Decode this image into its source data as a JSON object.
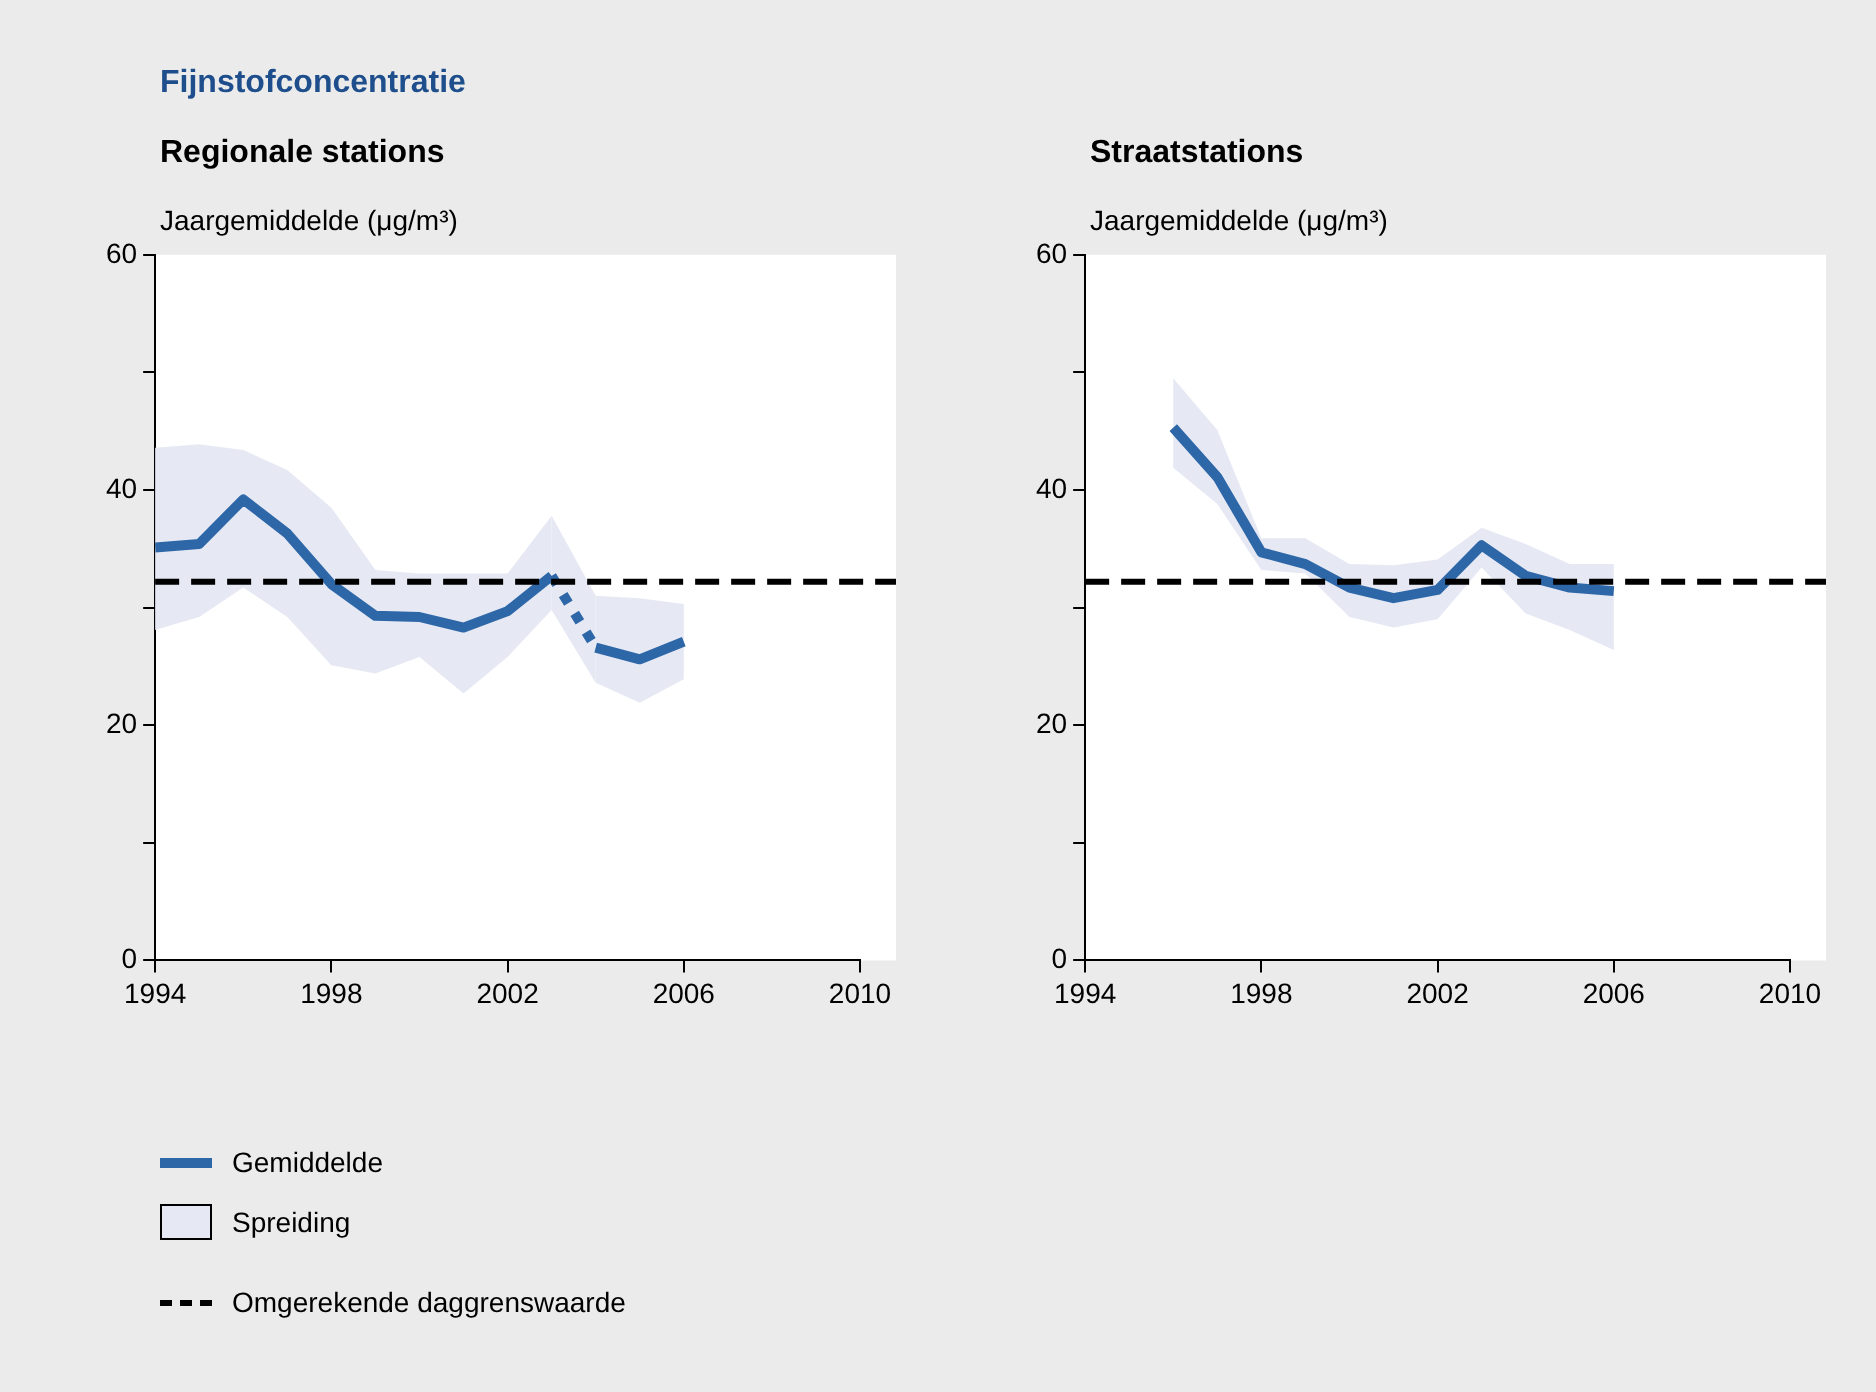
{
  "chart_data": [
    {
      "type": "line",
      "title": "Fijnstofconcentratie",
      "subtitle": "Regionale stations",
      "ylabel": "Jaargemiddelde (μg/m³)",
      "xlim": [
        1994,
        2010
      ],
      "xticks": [
        1994,
        1998,
        2002,
        2006,
        2010
      ],
      "ylim": [
        0,
        60
      ],
      "yticks": [
        0,
        {
          "value": 10,
          "label": null
        },
        20,
        {
          "value": 30,
          "label": null
        },
        40,
        {
          "value": 50,
          "label": null
        },
        60
      ],
      "grid": false,
      "legend": "bottom",
      "marker": "none",
      "annotations": [
        "Spreiding"
      ],
      "ref_lines": [
        {
          "axis": "y",
          "value": 32.2,
          "label": "Omgerekende daggrenswaarde",
          "color": "#000000",
          "line_style": "dashed"
        }
      ],
      "series": [
        {
          "name": "Gemiddelde",
          "color": "#2e67a8",
          "line_style": "solid",
          "x": [
            1994,
            1995,
            1996,
            1997,
            1998,
            1999,
            2000,
            2001,
            2002,
            2003
          ],
          "values": [
            35.1,
            35.4,
            39.2,
            36.3,
            32,
            29.3,
            29.2,
            28.3,
            29.7,
            32.7
          ],
          "lower": [
            28.1,
            29.2,
            31.7,
            29.2,
            25.1,
            24.4,
            25.8,
            22.7,
            25.8,
            29.8
          ],
          "upper": [
            43.6,
            43.9,
            43.4,
            41.7,
            38.5,
            33.2,
            32.9,
            32.9,
            32.9,
            37.8
          ]
        },
        {
          "color": "#2e67a8",
          "line_style": "dotted",
          "x": [
            2003,
            2004
          ],
          "values": [
            32.7,
            26.6
          ],
          "lower": [
            29.8,
            23.6
          ],
          "upper": [
            37.8,
            31
          ]
        },
        {
          "color": "#2e67a8",
          "line_style": "solid",
          "x": [
            2004,
            2005,
            2006
          ],
          "values": [
            26.6,
            25.6,
            27.1
          ],
          "lower": [
            23.6,
            21.9,
            23.9
          ],
          "upper": [
            31,
            30.8,
            30.3
          ]
        }
      ]
    },
    {
      "type": "line",
      "subtitle": "Straatstations",
      "ylabel": "Jaargemiddelde (μg/m³)",
      "xlim": [
        1994,
        2010
      ],
      "xticks": [
        1994,
        1998,
        2002,
        2006,
        2010
      ],
      "ylim": [
        0,
        60
      ],
      "yticks": [
        0,
        {
          "value": 10,
          "label": null
        },
        20,
        {
          "value": 30,
          "label": null
        },
        40,
        {
          "value": 50,
          "label": null
        },
        60
      ],
      "grid": false,
      "marker": "none",
      "ref_lines": [
        {
          "axis": "y",
          "value": 32.2,
          "color": "#000000",
          "line_style": "dashed"
        }
      ],
      "series": [
        {
          "color": "#2e67a8",
          "line_style": "solid",
          "x": [
            1996,
            1997,
            1998,
            1999,
            2000,
            2001,
            2002,
            2003,
            2004,
            2005,
            2006
          ],
          "values": [
            45.3,
            41.1,
            34.7,
            33.7,
            31.7,
            30.8,
            31.5,
            35.3,
            32.7,
            31.7,
            31.4
          ],
          "lower": [
            41.9,
            38.8,
            33.2,
            32.9,
            29.2,
            28.3,
            29,
            33.4,
            29.5,
            28.1,
            26.4
          ],
          "upper": [
            49.5,
            45.1,
            35.9,
            35.9,
            33.7,
            33.6,
            34.1,
            36.8,
            35.4,
            33.7,
            33.7
          ]
        }
      ]
    }
  ]
}
